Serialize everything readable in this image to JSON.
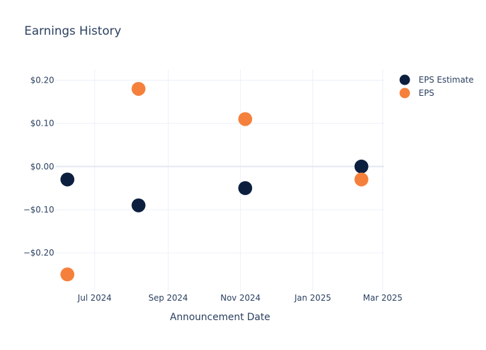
{
  "chart_data": {
    "type": "scatter",
    "title": "Earnings History",
    "xlabel": "Announcement Date",
    "ylabel": "",
    "x_ticks": [
      "Jul 2024",
      "Sep 2024",
      "Nov 2024",
      "Jan 2025",
      "Mar 2025"
    ],
    "x_tick_dates": [
      "2024-07-01",
      "2024-09-01",
      "2024-11-01",
      "2025-01-01",
      "2025-03-01"
    ],
    "y_ticks": [
      "$0.20",
      "$0.10",
      "$0.00",
      "−$0.10",
      "−$0.20"
    ],
    "y_tick_values": [
      0.2,
      0.1,
      0.0,
      -0.1,
      -0.2
    ],
    "xlim": [
      "2024-05-29",
      "2025-03-02"
    ],
    "ylim": [
      -0.29,
      0.225
    ],
    "grid": true,
    "legend_position": "top-right",
    "series": [
      {
        "name": "EPS Estimate",
        "color": "#0d1f3f",
        "points": [
          {
            "x": "2024-06-08",
            "y": -0.03
          },
          {
            "x": "2024-08-07",
            "y": -0.09
          },
          {
            "x": "2024-11-05",
            "y": -0.05
          },
          {
            "x": "2025-02-11",
            "y": 0.0
          }
        ]
      },
      {
        "name": "EPS",
        "color": "#f5803c",
        "points": [
          {
            "x": "2024-06-08",
            "y": -0.25
          },
          {
            "x": "2024-08-07",
            "y": 0.18
          },
          {
            "x": "2024-11-05",
            "y": 0.11
          },
          {
            "x": "2025-02-11",
            "y": -0.03
          }
        ]
      }
    ]
  }
}
